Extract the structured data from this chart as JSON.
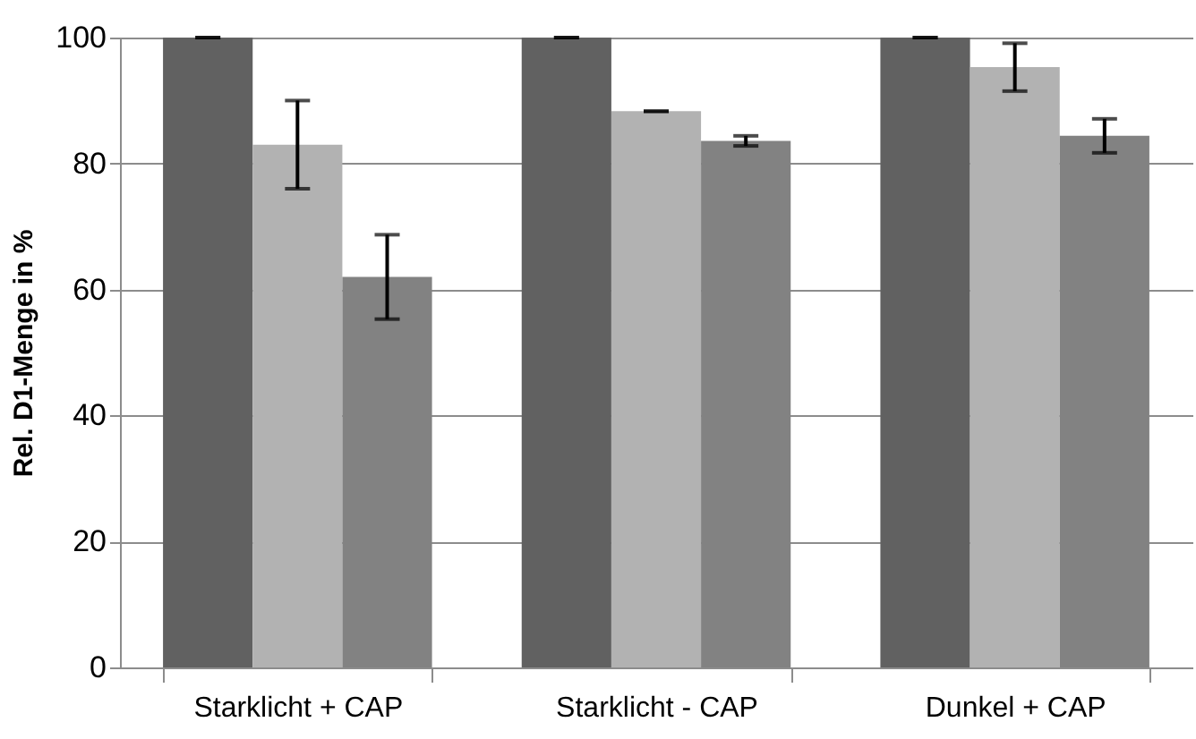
{
  "chart_data": {
    "type": "bar",
    "ylabel": "Rel. D1-Menge in %",
    "categories": [
      "Starklicht + CAP",
      "Starklicht - CAP",
      "Dunkel + CAP"
    ],
    "series": [
      {
        "color": "#616161",
        "values": [
          100,
          100,
          100
        ],
        "errors": [
          0,
          0,
          0
        ]
      },
      {
        "color": "#b2b2b2",
        "values": [
          83,
          88.3,
          95.3
        ],
        "errors": [
          7,
          0,
          3.8
        ]
      },
      {
        "color": "#828282",
        "values": [
          62,
          83.6,
          84.4
        ],
        "errors": [
          6.7,
          0.8,
          2.7
        ]
      }
    ],
    "ylim": [
      0,
      100
    ],
    "yticks": [
      0,
      20,
      40,
      60,
      80,
      100
    ],
    "grid": "y"
  }
}
